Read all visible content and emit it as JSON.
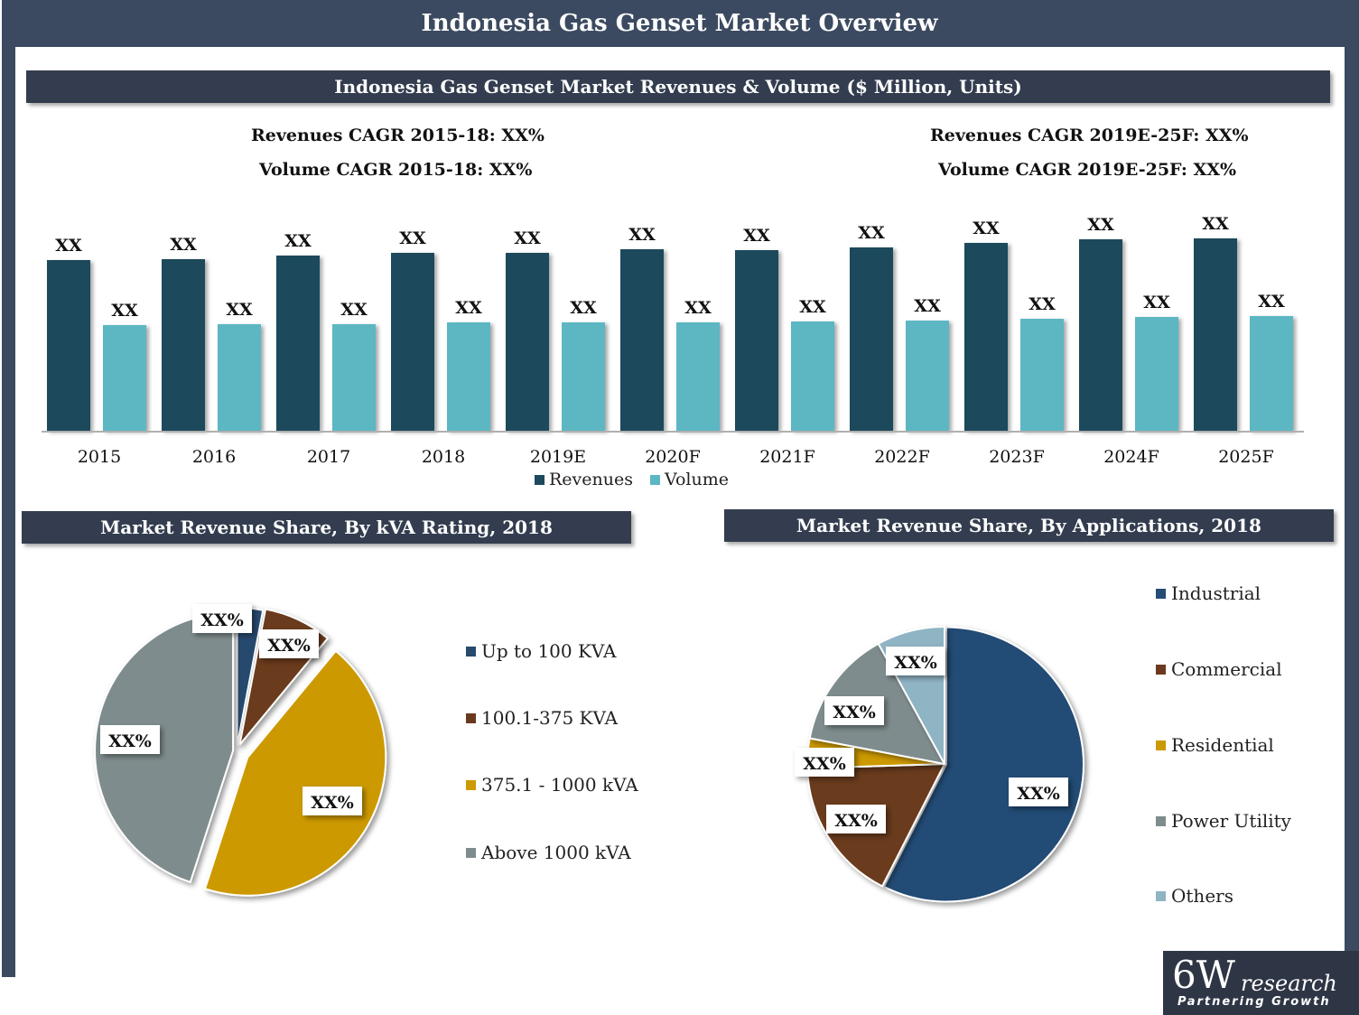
{
  "page_title": "Indonesia Gas Genset Market Overview",
  "colors": {
    "frame": "#3b4a60",
    "band": "#333d4f",
    "revenues": "#1d4a5c",
    "volume": "#5bb7c3",
    "kva_up_to_100": "#274a6e",
    "kva_100_375": "#6b3a1e",
    "kva_375_1000": "#cc9900",
    "kva_above_1000": "#7f8c8d",
    "app_industrial": "#244c74",
    "app_commercial": "#6b3a1e",
    "app_residential": "#cc9900",
    "app_power_utility": "#7f8c8d",
    "app_others": "#8fb4c4"
  },
  "cagr": {
    "rev_hist": "Revenues CAGR 2015-18: XX%",
    "vol_hist": "Volume CAGR 2015-18: XX%",
    "rev_fore": "Revenues CAGR 2019E-25F: XX%",
    "vol_fore": "Volume CAGR 2019E-25F: XX%"
  },
  "logo": {
    "big": "6W",
    "word": "research",
    "tagline": "Partnering Growth"
  },
  "chart_data": [
    {
      "type": "bar",
      "title": "Indonesia Gas Genset Market Revenues & Volume ($ Million, Units)",
      "categories": [
        "2015",
        "2016",
        "2017",
        "2018",
        "2019E",
        "2020F",
        "2021F",
        "2022F",
        "2023F",
        "2024F",
        "2025F"
      ],
      "series": [
        {
          "name": "Revenues",
          "values": [
            189,
            190,
            194,
            197,
            197,
            201,
            200,
            203,
            208,
            212,
            213
          ],
          "labels": [
            "XX",
            "XX",
            "XX",
            "XX",
            "XX",
            "XX",
            "XX",
            "XX",
            "XX",
            "XX",
            "XX"
          ]
        },
        {
          "name": "Volume",
          "values": [
            117,
            118,
            118,
            120,
            120,
            120,
            121,
            122,
            124,
            126,
            127
          ],
          "labels": [
            "XX",
            "XX",
            "XX",
            "XX",
            "XX",
            "XX",
            "XX",
            "XX",
            "XX",
            "XX",
            "XX"
          ]
        }
      ],
      "ylim": [
        0,
        230
      ],
      "legend_position": "bottom"
    },
    {
      "type": "pie",
      "title": "Market Revenue Share, By kVA Rating, 2018",
      "labels": [
        "Up to 100 KVA",
        "100.1-375 KVA",
        "375.1 - 1000 kVA",
        "Above 1000 kVA"
      ],
      "values": [
        3,
        8,
        44,
        45
      ],
      "data_labels": [
        "XX%",
        "XX%",
        "XX%",
        "XX%"
      ],
      "legend_position": "right"
    },
    {
      "type": "pie",
      "title": "Market Revenue Share, By Applications, 2018",
      "labels": [
        "Industrial",
        "Commercial",
        "Residential",
        "Power Utility",
        "Others"
      ],
      "values": [
        57.5,
        17,
        3.5,
        14,
        8
      ],
      "data_labels": [
        "XX%",
        "XX%",
        "XX%",
        "XX%",
        "XX%"
      ],
      "legend_position": "right"
    }
  ]
}
